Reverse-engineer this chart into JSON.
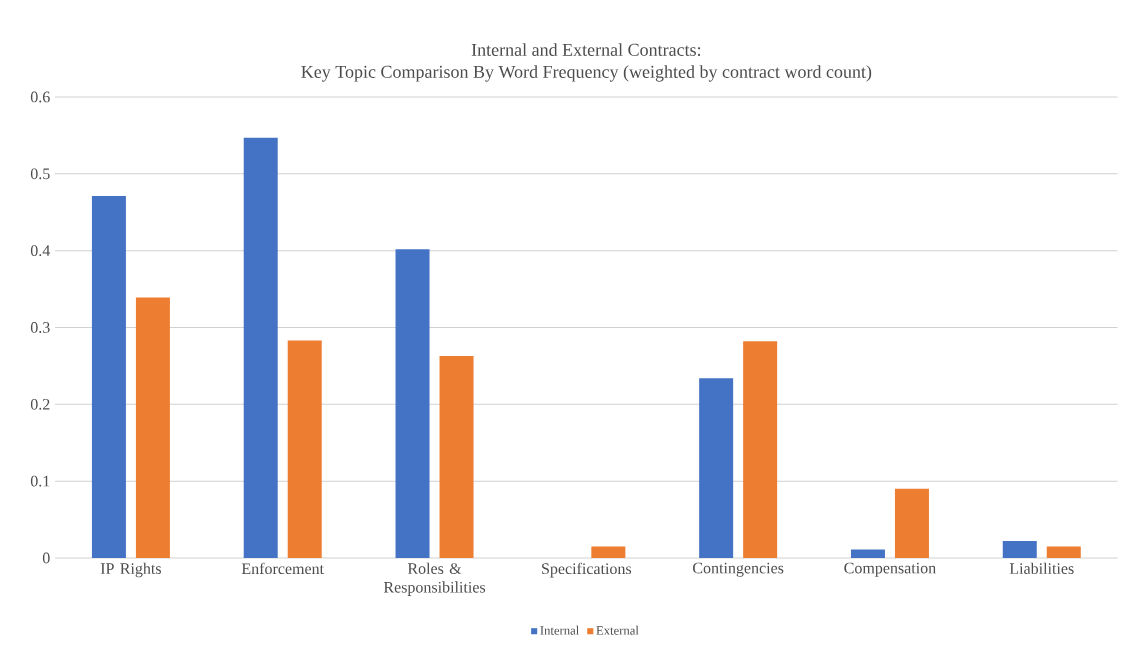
{
  "chart_data": {
    "type": "bar",
    "title": "Internal and External Contracts:",
    "subtitle": "Key Topic Comparison By Word Frequency (weighted by contract word count)",
    "categories": [
      "IP Rights",
      "Enforcement",
      "Roles & Responsibilities",
      "Specifications",
      "Contingencies",
      "Compensation",
      "Liabilities"
    ],
    "series": [
      {
        "name": "Internal",
        "color": "#4472c4",
        "values": [
          0.471,
          0.547,
          0.402,
          null,
          0.234,
          0.011,
          0.022
        ]
      },
      {
        "name": "External",
        "color": "#ed7d31",
        "values": [
          0.339,
          0.283,
          0.263,
          0.015,
          0.282,
          0.09,
          0.015
        ]
      }
    ],
    "ylim": [
      0,
      0.6
    ],
    "yticks": [
      0,
      0.1,
      0.2,
      0.3,
      0.4,
      0.5,
      0.6
    ],
    "grid": "y",
    "legend": "bottom"
  }
}
